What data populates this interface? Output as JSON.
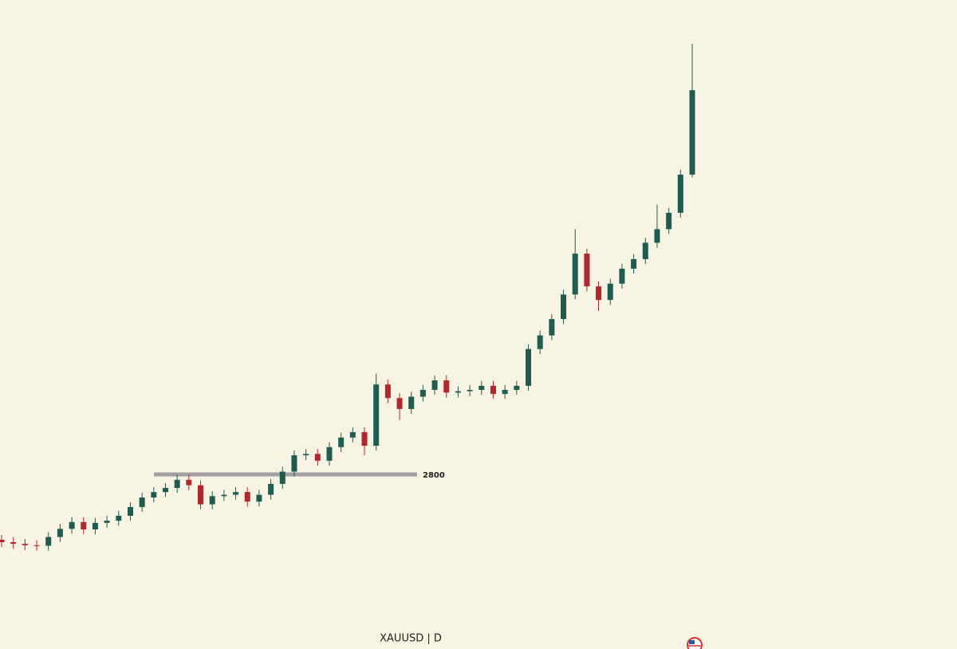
{
  "chart_data": {
    "type": "candlestick",
    "symbol": "XAUUSD | D",
    "ylim": [
      2159,
      4541
    ],
    "level": 2800,
    "up_color": "#1f5c50",
    "down_color": "#b3262b",
    "level_color": "#a0a0a0",
    "open": [
      2560,
      2551,
      2545,
      2540,
      2538,
      2570,
      2600,
      2625,
      2598,
      2622,
      2630,
      2648,
      2680,
      2715,
      2735,
      2750,
      2780,
      2760,
      2690,
      2720,
      2725,
      2735,
      2700,
      2725,
      2765,
      2810,
      2870,
      2875,
      2850,
      2900,
      2935,
      2955,
      2905,
      3130,
      3080,
      3040,
      3085,
      3110,
      3145,
      3100,
      3105,
      3110,
      3125,
      3095,
      3110,
      3125,
      3260,
      3310,
      3370,
      3460,
      3610,
      3490,
      3440,
      3500,
      3555,
      3590,
      3650,
      3700,
      3760,
      3900
    ],
    "high": [
      2578,
      2569,
      2563,
      2558,
      2588,
      2618,
      2643,
      2643,
      2640,
      2648,
      2666,
      2698,
      2733,
      2753,
      2768,
      2798,
      2798,
      2778,
      2738,
      2743,
      2753,
      2753,
      2743,
      2783,
      2828,
      2888,
      2893,
      2893,
      2918,
      2953,
      2973,
      2973,
      3170,
      3148,
      3098,
      3103,
      3128,
      3163,
      3163,
      3123,
      3128,
      3143,
      3143,
      3128,
      3143,
      3278,
      3328,
      3388,
      3478,
      3700,
      3628,
      3508,
      3518,
      3573,
      3608,
      3668,
      3790,
      3778,
      3918,
      4380
    ],
    "low": [
      2533,
      2527,
      2522,
      2520,
      2520,
      2552,
      2582,
      2580,
      2580,
      2604,
      2612,
      2630,
      2662,
      2697,
      2717,
      2732,
      2742,
      2672,
      2672,
      2702,
      2707,
      2682,
      2682,
      2707,
      2747,
      2792,
      2852,
      2832,
      2832,
      2882,
      2917,
      2870,
      2887,
      3062,
      3000,
      3022,
      3067,
      3092,
      3082,
      3082,
      3087,
      3092,
      3077,
      3077,
      3092,
      3107,
      3242,
      3292,
      3352,
      3442,
      3472,
      3400,
      3422,
      3482,
      3537,
      3572,
      3632,
      3682,
      3742,
      3890
    ],
    "close": [
      2551,
      2545,
      2540,
      2538,
      2570,
      2600,
      2625,
      2598,
      2622,
      2630,
      2648,
      2680,
      2715,
      2735,
      2750,
      2780,
      2760,
      2690,
      2720,
      2725,
      2735,
      2700,
      2725,
      2765,
      2810,
      2870,
      2875,
      2850,
      2900,
      2935,
      2955,
      2905,
      3130,
      3080,
      3040,
      3085,
      3110,
      3145,
      3100,
      3105,
      3110,
      3125,
      3095,
      3110,
      3125,
      3260,
      3310,
      3370,
      3460,
      3610,
      3490,
      3440,
      3500,
      3555,
      3590,
      3650,
      3700,
      3760,
      3900,
      4210
    ]
  }
}
